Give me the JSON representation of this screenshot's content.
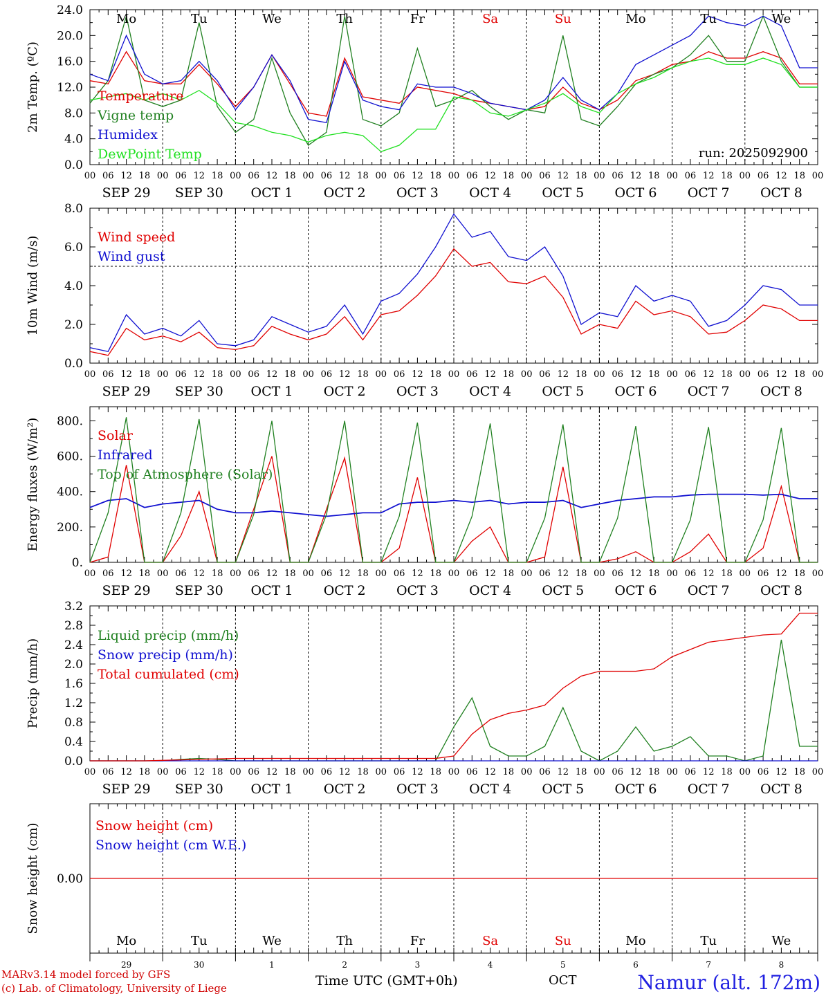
{
  "run_label": "run: 2025092900",
  "weekdays": [
    "Mo",
    "Tu",
    "We",
    "Th",
    "Fr",
    "Sa",
    "Su",
    "Mo",
    "Tu",
    "We"
  ],
  "weekend_days": [
    5,
    6
  ],
  "date_labels": [
    "SEP 29",
    "SEP 30",
    "OCT  1",
    "OCT  2",
    "OCT  3",
    "OCT  4",
    "OCT  5",
    "OCT  6",
    "OCT  7",
    "OCT  8"
  ],
  "hour_labels": [
    "00",
    "06",
    "12",
    "18"
  ],
  "hour_label_end": "00",
  "bottom_day_numbers": [
    "29",
    "30",
    "1",
    "2",
    "3",
    "4",
    "5",
    "6",
    "7",
    "8"
  ],
  "footer": {
    "model_line1": "MARv3.14 model forced by GFS",
    "model_line2": "(c) Lab. of Climatology, University of Liege",
    "time_label": "Time UTC (GMT+0h)",
    "month_label": "OCT",
    "location": "Namur (alt. 172m)"
  },
  "colors": {
    "red": "#e00000",
    "green": "#208020",
    "blue": "#1010d0",
    "lightgreen": "#20e020",
    "black": "#000000"
  },
  "chart_data": [
    {
      "type": "line",
      "id": "temp",
      "ylabel": "2m Temp. (ºC)",
      "ylim": [
        0,
        24
      ],
      "yticks": [
        "0.0",
        "4.0",
        "8.0",
        "12.0",
        "16.0",
        "20.0",
        "24.0"
      ],
      "x_unit": "hours since 2025-09-29 00 UTC, step 6h",
      "legend": [
        "Temperature",
        "Vigne temp",
        "Humidex",
        "DewPoint Temp"
      ],
      "series": [
        {
          "name": "Temperature",
          "color": "red",
          "values": [
            13,
            12.5,
            17.5,
            13,
            12.5,
            12.5,
            15.5,
            12.5,
            9,
            12,
            17,
            12.5,
            8,
            7.5,
            16.5,
            10.5,
            10,
            9.5,
            12,
            11.5,
            11,
            10,
            9.5,
            9,
            8.5,
            9,
            12,
            9.5,
            8.5,
            10,
            13,
            14,
            15.5,
            16,
            17.5,
            16.5,
            16.5,
            17.5,
            16.5,
            12.5
          ]
        },
        {
          "name": "Vigne temp",
          "color": "green",
          "values": [
            9.5,
            13,
            23,
            10,
            9,
            10,
            22,
            9,
            5,
            7,
            16.5,
            8,
            3,
            5,
            23,
            7,
            6,
            8,
            18,
            9,
            10,
            11.5,
            9,
            7,
            8.5,
            8,
            20,
            7,
            6,
            9,
            12.5,
            14,
            15,
            17,
            20,
            16,
            16,
            23,
            16,
            12
          ]
        },
        {
          "name": "Humidex",
          "color": "blue",
          "values": [
            14,
            13,
            20,
            14,
            12.5,
            13,
            16,
            13,
            8.5,
            12,
            17,
            13,
            7,
            6.5,
            16,
            10,
            9,
            8.5,
            12.5,
            12,
            12,
            11,
            9.5,
            9,
            8.5,
            10,
            13.5,
            10,
            8.5,
            11,
            15.5,
            17,
            18.5,
            20,
            23,
            22,
            21.5,
            23,
            21.5,
            15
          ]
        },
        {
          "name": "DewPoint Temp",
          "color": "lightgreen",
          "values": [
            10,
            10.5,
            11,
            10,
            11,
            10,
            11.5,
            9.5,
            6.5,
            6,
            5,
            4.5,
            3.5,
            4.5,
            5,
            4.5,
            2,
            3,
            5.5,
            5.5,
            10.5,
            10,
            8,
            7.5,
            8.5,
            9.5,
            11,
            9,
            8,
            11,
            12.5,
            13.5,
            15,
            16,
            16.5,
            15.5,
            15.5,
            16.5,
            15.5,
            12
          ]
        }
      ]
    },
    {
      "type": "line",
      "id": "wind",
      "ylabel": "10m Wind (m/s)",
      "ylim": [
        0,
        8
      ],
      "yticks": [
        "0.0",
        "2.0",
        "4.0",
        "6.0",
        "8.0"
      ],
      "ref_line": 5,
      "legend": [
        "Wind speed",
        "Wind gust"
      ],
      "series": [
        {
          "name": "Wind speed",
          "color": "red",
          "values": [
            0.6,
            0.4,
            1.8,
            1.2,
            1.4,
            1.1,
            1.6,
            0.8,
            0.7,
            0.9,
            1.9,
            1.5,
            1.2,
            1.5,
            2.4,
            1.2,
            2.5,
            2.7,
            3.5,
            4.5,
            5.9,
            5,
            5.2,
            4.2,
            4.1,
            4.5,
            3.4,
            1.5,
            2,
            1.8,
            3.2,
            2.5,
            2.7,
            2.4,
            1.5,
            1.6,
            2.2,
            3,
            2.8,
            2.2
          ]
        },
        {
          "name": "Wind gust",
          "color": "blue",
          "values": [
            0.8,
            0.6,
            2.5,
            1.5,
            1.8,
            1.4,
            2.2,
            1.0,
            0.9,
            1.2,
            2.4,
            2.0,
            1.6,
            1.9,
            3.0,
            1.5,
            3.2,
            3.6,
            4.6,
            6.0,
            7.7,
            6.5,
            6.8,
            5.5,
            5.3,
            6.0,
            4.5,
            2.0,
            2.6,
            2.4,
            4.0,
            3.2,
            3.5,
            3.2,
            1.9,
            2.2,
            3.0,
            4.0,
            3.8,
            3.0
          ]
        }
      ]
    },
    {
      "type": "line",
      "id": "flux",
      "ylabel": "Energy fluxes (W/m²)",
      "ylim": [
        0,
        880
      ],
      "yticks": [
        "0.",
        "200.",
        "400.",
        "600.",
        "800."
      ],
      "legend": [
        "Solar",
        "Infrared",
        "Top of Atmosphere (Solar)"
      ],
      "series": [
        {
          "name": "Solar",
          "color": "red",
          "values": [
            0,
            30,
            550,
            0,
            0,
            150,
            400,
            0,
            0,
            300,
            600,
            0,
            0,
            300,
            590,
            0,
            0,
            80,
            480,
            0,
            0,
            120,
            200,
            0,
            0,
            30,
            540,
            0,
            0,
            20,
            60,
            0,
            0,
            60,
            160,
            0,
            0,
            80,
            430,
            0
          ]
        },
        {
          "name": "Infrared",
          "color": "blue",
          "values": [
            310,
            350,
            360,
            310,
            330,
            340,
            350,
            300,
            280,
            280,
            290,
            280,
            270,
            260,
            270,
            280,
            280,
            330,
            340,
            340,
            350,
            340,
            350,
            330,
            340,
            340,
            350,
            310,
            330,
            350,
            360,
            370,
            370,
            380,
            385,
            385,
            385,
            380,
            385,
            360
          ]
        },
        {
          "name": "Top of Atmosphere (Solar)",
          "color": "green",
          "values": [
            0,
            280,
            820,
            0,
            0,
            280,
            810,
            0,
            0,
            270,
            800,
            0,
            0,
            270,
            800,
            0,
            0,
            260,
            790,
            0,
            0,
            260,
            785,
            0,
            0,
            250,
            780,
            0,
            0,
            250,
            770,
            0,
            0,
            240,
            765,
            0,
            0,
            240,
            760,
            0
          ]
        }
      ]
    },
    {
      "type": "line",
      "id": "precip",
      "ylabel": "Precip (mm/h)",
      "ylim": [
        0,
        3.2
      ],
      "yticks": [
        "0.0",
        "0.4",
        "0.8",
        "1.2",
        "1.6",
        "2.0",
        "2.4",
        "2.8",
        "3.2"
      ],
      "legend": [
        "Liquid precip (mm/h)",
        "Snow precip (mm/h)",
        "Total cumulated (cm)"
      ],
      "series": [
        {
          "name": "Liquid precip (mm/h)",
          "color": "green",
          "values": [
            0,
            0,
            0,
            0,
            0,
            0.03,
            0.05,
            0.03,
            0,
            0,
            0,
            0,
            0,
            0,
            0,
            0,
            0,
            0,
            0,
            0,
            0.7,
            1.3,
            0.3,
            0.1,
            0.1,
            0.3,
            1.1,
            0.2,
            0,
            0.2,
            0.7,
            0.2,
            0.3,
            0.5,
            0.1,
            0.1,
            0,
            0.1,
            2.5,
            0.3
          ]
        },
        {
          "name": "Snow precip (mm/h)",
          "color": "blue",
          "values": [
            0,
            0,
            0,
            0,
            0,
            0,
            0,
            0,
            0,
            0,
            0,
            0,
            0,
            0,
            0,
            0,
            0,
            0,
            0,
            0,
            0,
            0,
            0,
            0,
            0,
            0,
            0,
            0,
            0,
            0,
            0,
            0,
            0,
            0,
            0,
            0,
            0,
            0,
            0,
            0
          ]
        },
        {
          "name": "Total cumulated (cm)",
          "color": "red",
          "values": [
            0,
            0,
            0,
            0,
            0.01,
            0.02,
            0.03,
            0.04,
            0.05,
            0.05,
            0.05,
            0.05,
            0.05,
            0.05,
            0.05,
            0.05,
            0.05,
            0.05,
            0.05,
            0.05,
            0.1,
            0.55,
            0.85,
            0.98,
            1.05,
            1.15,
            1.5,
            1.75,
            1.85,
            1.85,
            1.85,
            1.9,
            2.15,
            2.3,
            2.45,
            2.5,
            2.55,
            2.6,
            2.62,
            3.05
          ]
        }
      ]
    },
    {
      "type": "line",
      "id": "snow",
      "ylabel": "Snow height (cm)",
      "ylim": [
        -1,
        1
      ],
      "yticks": [
        "0.00"
      ],
      "legend": [
        "Snow height (cm)",
        "Snow height (cm W.E.)"
      ],
      "series": [
        {
          "name": "Snow height (cm)",
          "color": "red",
          "values": [
            0,
            0,
            0,
            0,
            0,
            0,
            0,
            0,
            0,
            0,
            0,
            0,
            0,
            0,
            0,
            0,
            0,
            0,
            0,
            0,
            0,
            0,
            0,
            0,
            0,
            0,
            0,
            0,
            0,
            0,
            0,
            0,
            0,
            0,
            0,
            0,
            0,
            0,
            0,
            0
          ]
        }
      ]
    }
  ]
}
